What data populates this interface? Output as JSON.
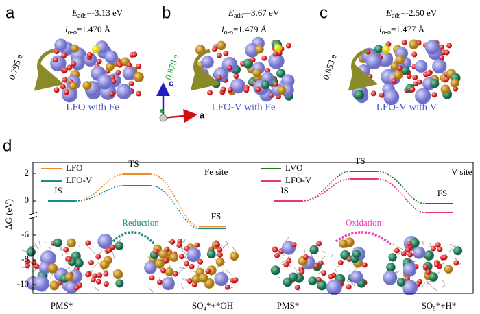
{
  "panels": [
    {
      "letter": "a",
      "energy_symbol": "E",
      "energy_subscript": "ads",
      "energy_value": "=-3.13 eV",
      "length_symbol": "l",
      "length_subscript": "o-o",
      "length_value": "=1.470 Å",
      "charge": "0.795 e",
      "charge_color": "#000000",
      "caption": "LFO with Fe"
    },
    {
      "letter": "b",
      "energy_symbol": "E",
      "energy_subscript": "ads",
      "energy_value": "=-3.67 eV",
      "length_symbol": "l",
      "length_subscript": "o-o",
      "length_value": "=1.479 Å",
      "charge": "0.878 e",
      "charge_color": "#1fa33a",
      "caption": "LFO-V with Fe"
    },
    {
      "letter": "c",
      "energy_symbol": "E",
      "energy_subscript": "ads",
      "energy_value": "=-2.50 eV",
      "length_symbol": "l",
      "length_subscript": "o-o",
      "length_value": "=1.477 Å",
      "charge": "0.853 e",
      "charge_color": "#000000",
      "caption": "LFO-V with V"
    }
  ],
  "axis_labels": [
    "c",
    "a"
  ],
  "chart_data": {
    "type": "energy-profile",
    "panel_letter": "d",
    "ylabel": "ΔG (eV)",
    "ylim": [
      -10.5,
      2.5
    ],
    "ybreak": [
      -4.5,
      -1
    ],
    "yticks": [
      2,
      0,
      -6,
      -8,
      -10
    ],
    "states": [
      "IS",
      "TS",
      "FS"
    ],
    "groups": [
      {
        "site": "Fe site",
        "process": "Reduction",
        "process_color": "#1b8a8a",
        "endpoints": [
          "PMS*",
          "SO₄*+*OH"
        ],
        "series": [
          {
            "name": "LFO",
            "color": "#f08a24",
            "values": [
              0,
              1.95,
              -5.3
            ]
          },
          {
            "name": "LFO-V",
            "color": "#1b8a8a",
            "values": [
              0,
              1.1,
              -5.45
            ]
          }
        ]
      },
      {
        "site": "V site",
        "process": "Oxidation",
        "process_color": "#ee3fb0",
        "endpoints": [
          "PMS*",
          "SO₅*+H*"
        ],
        "series": [
          {
            "name": "LVO",
            "color": "#1e7a1e",
            "values": [
              0,
              2.15,
              -0.2
            ]
          },
          {
            "name": "LFO-V",
            "color": "#e8337f",
            "values": [
              0,
              1.6,
              -0.85
            ]
          }
        ]
      }
    ]
  }
}
